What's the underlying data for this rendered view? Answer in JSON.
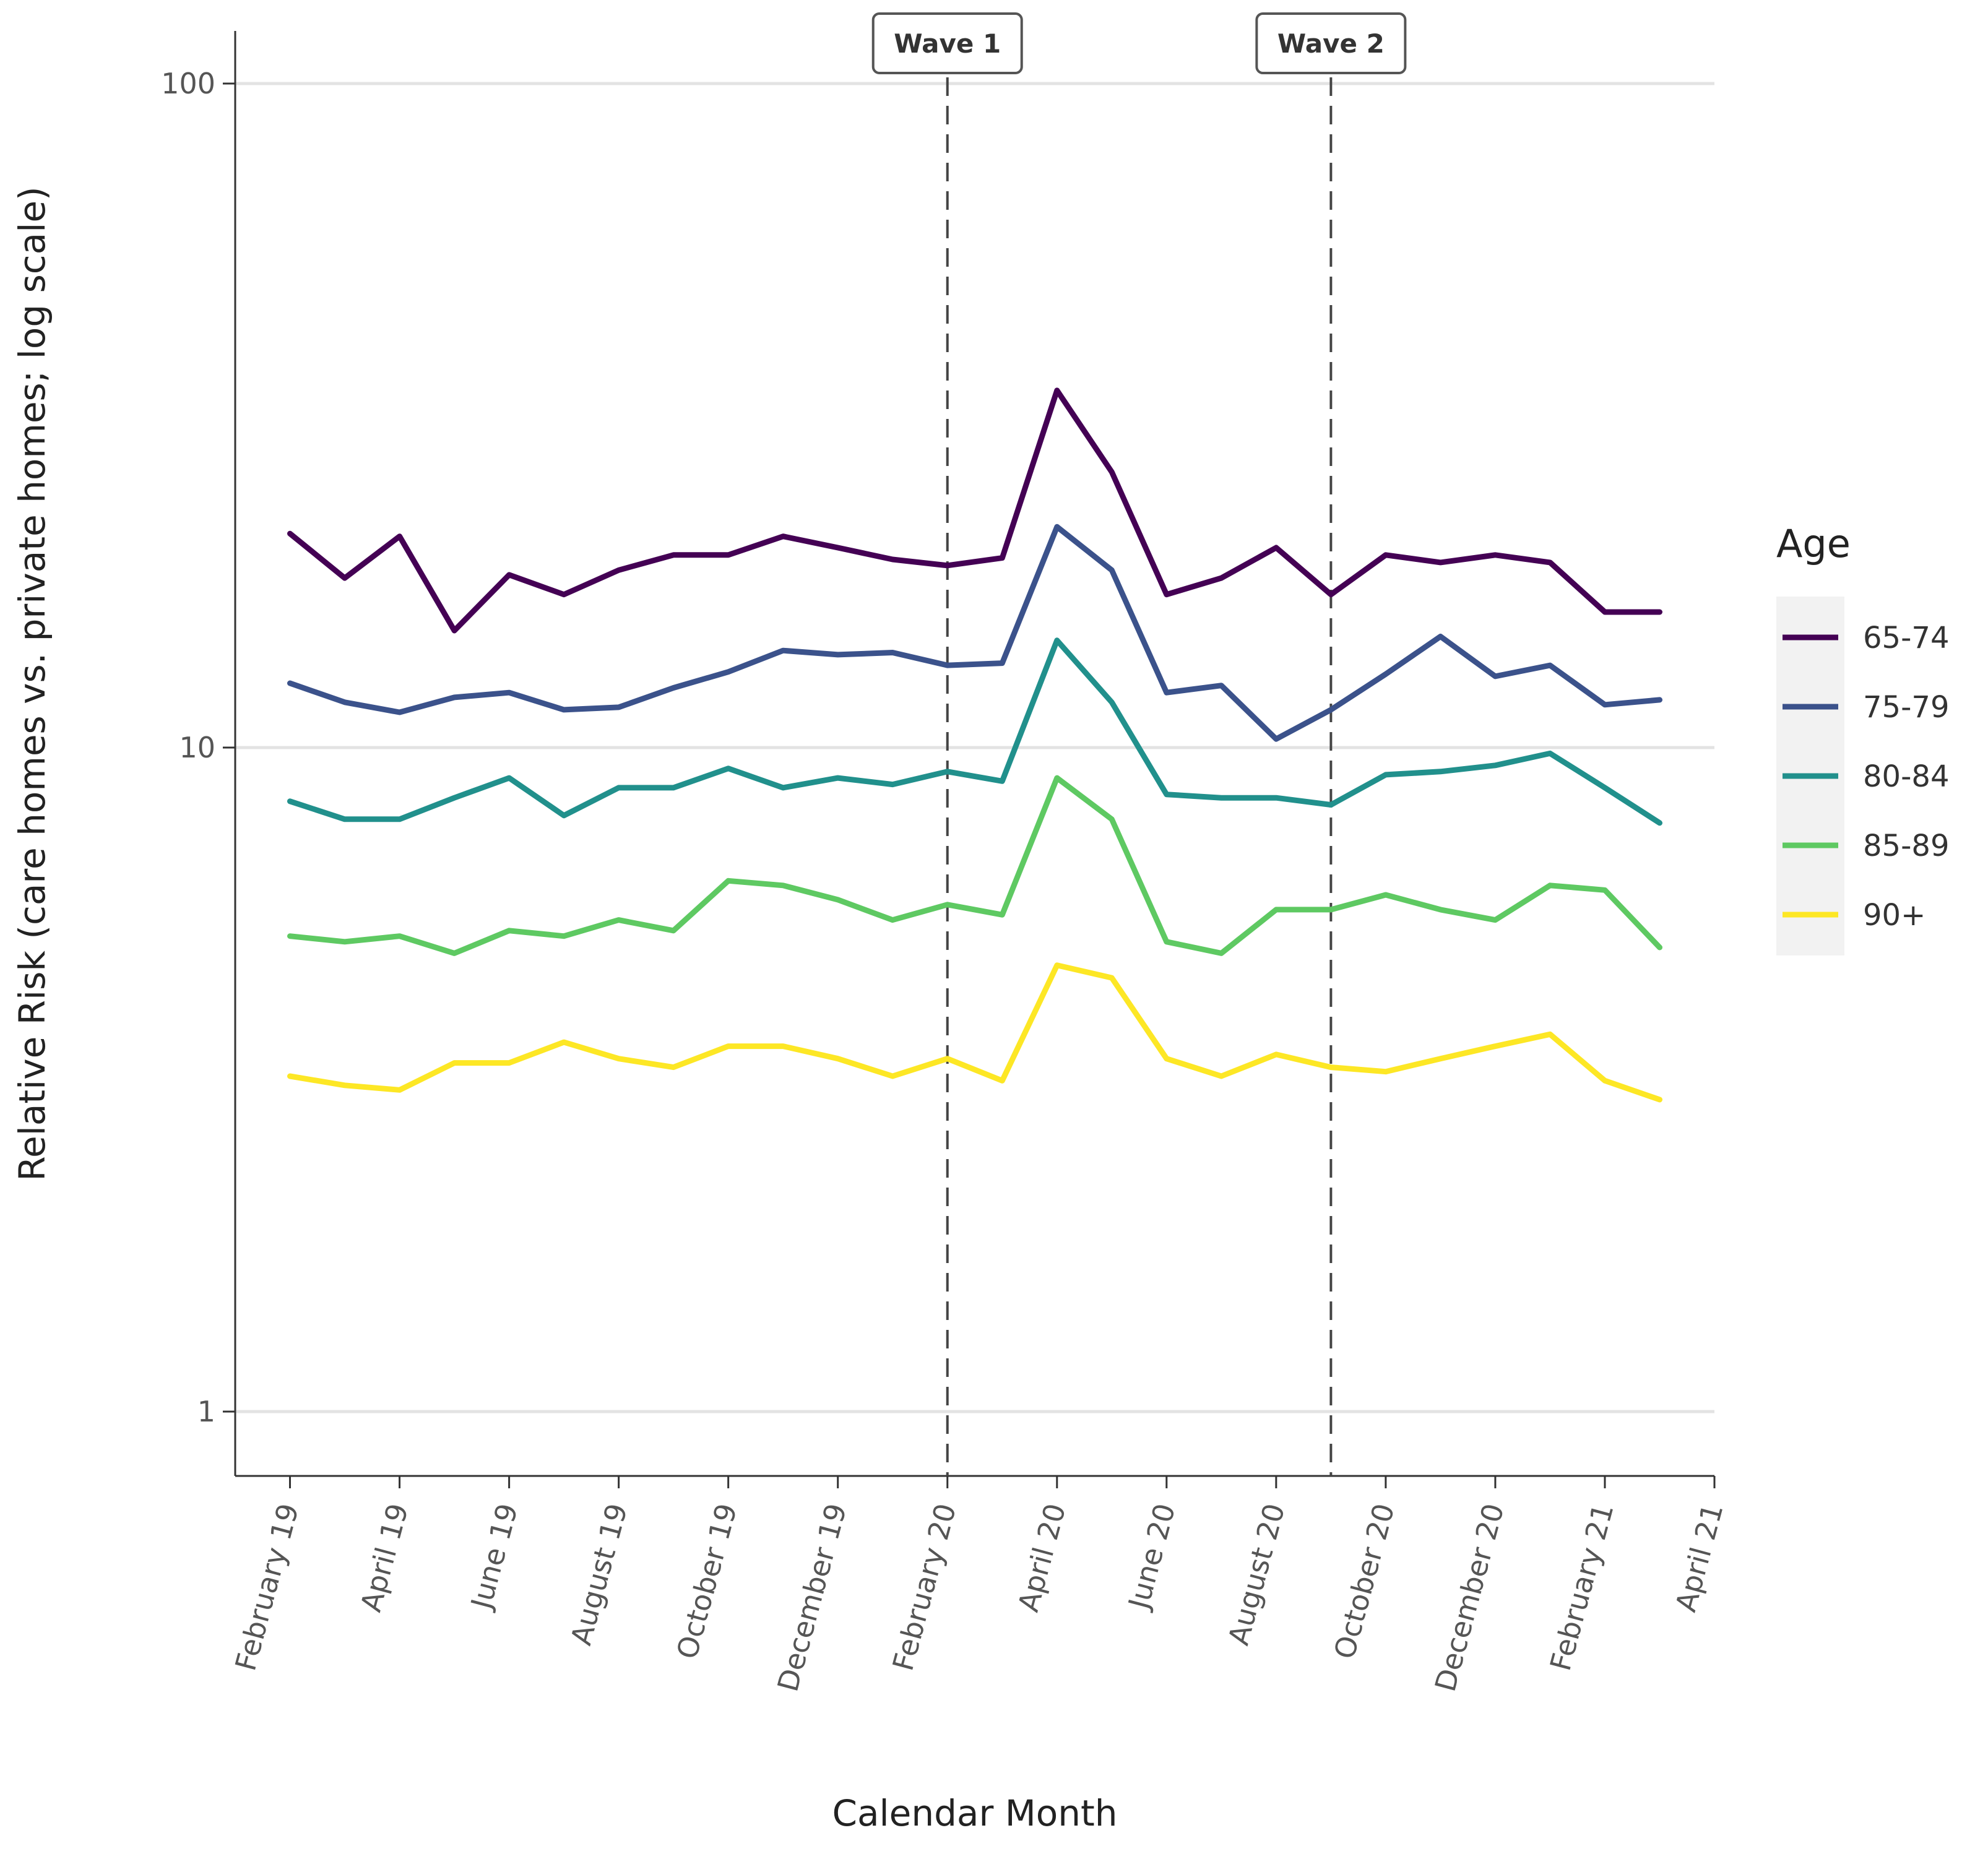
{
  "chart_data": {
    "type": "line",
    "title": "",
    "xlabel": "Calendar Month",
    "ylabel": "Relative Risk (care homes vs. private homes; log scale)",
    "y_scale": "log",
    "ylim": [
      0.8,
      120
    ],
    "y_ticks": [
      1,
      10,
      100
    ],
    "y_tick_labels": [
      "1",
      "10",
      "100"
    ],
    "x_start": "2019-02",
    "x_range": [
      "2019-01",
      "2021-04"
    ],
    "x_ticks": [
      "2019-02",
      "2019-04",
      "2019-06",
      "2019-08",
      "2019-10",
      "2019-12",
      "2020-02",
      "2020-04",
      "2020-06",
      "2020-08",
      "2020-10",
      "2020-12",
      "2021-02",
      "2021-04"
    ],
    "x_tick_labels": [
      "February 19",
      "April 19",
      "June 19",
      "August 19",
      "October 19",
      "December 19",
      "February 20",
      "April 20",
      "June 20",
      "August 20",
      "October 20",
      "December 20",
      "February 21",
      "April 21"
    ],
    "x": [
      "2019-02",
      "2019-03",
      "2019-04",
      "2019-05",
      "2019-06",
      "2019-07",
      "2019-08",
      "2019-09",
      "2019-10",
      "2019-11",
      "2019-12",
      "2020-01",
      "2020-02",
      "2020-03",
      "2020-04",
      "2020-05",
      "2020-06",
      "2020-07",
      "2020-08",
      "2020-09",
      "2020-10",
      "2020-11",
      "2020-12",
      "2021-01",
      "2021-02",
      "2021-03"
    ],
    "grid": "horizontal major",
    "legend_title": "Age",
    "legend_position": "right",
    "annotations": [
      {
        "label": "Wave 1",
        "x": "2020-02"
      },
      {
        "label": "Wave 2",
        "x": "2020-09"
      }
    ],
    "series": [
      {
        "name": "65-74",
        "color": "#440154",
        "values": [
          21,
          18,
          20.8,
          15,
          18.2,
          17,
          18.5,
          19.5,
          19.5,
          20.8,
          20,
          19.2,
          18.8,
          19.3,
          34.5,
          26,
          17,
          18,
          20,
          17,
          19.5,
          19,
          19.5,
          19,
          16,
          16
        ]
      },
      {
        "name": "75-79",
        "color": "#3b528b",
        "values": [
          12.5,
          11.7,
          11.3,
          11.9,
          12.1,
          11.4,
          11.5,
          12.3,
          13,
          14,
          13.8,
          13.9,
          13.3,
          13.4,
          21.5,
          18.5,
          12.1,
          12.4,
          10.3,
          11.4,
          12.9,
          14.7,
          12.8,
          13.3,
          11.6,
          11.8
        ]
      },
      {
        "name": "80-84",
        "color": "#21908c",
        "values": [
          8.3,
          7.8,
          7.8,
          8.4,
          9,
          7.9,
          8.7,
          8.7,
          9.3,
          8.7,
          9,
          8.8,
          9.2,
          8.9,
          14.5,
          11.7,
          8.5,
          8.4,
          8.4,
          8.2,
          9.1,
          9.2,
          9.4,
          9.8,
          8.7,
          7.7
        ]
      },
      {
        "name": "85-89",
        "color": "#5ec962",
        "values": [
          5.2,
          5.1,
          5.2,
          4.9,
          5.3,
          5.2,
          5.5,
          5.3,
          6.3,
          6.2,
          5.9,
          5.5,
          5.8,
          5.6,
          9,
          7.8,
          5.1,
          4.9,
          5.7,
          5.7,
          6,
          5.7,
          5.5,
          6.2,
          6.1,
          5
        ]
      },
      {
        "name": "90+",
        "color": "#fde725",
        "values": [
          3.2,
          3.1,
          3.05,
          3.35,
          3.35,
          3.6,
          3.4,
          3.3,
          3.55,
          3.55,
          3.4,
          3.2,
          3.4,
          3.15,
          4.7,
          4.5,
          3.4,
          3.2,
          3.45,
          3.3,
          3.25,
          3.4,
          3.55,
          3.7,
          3.15,
          2.95
        ]
      }
    ]
  }
}
